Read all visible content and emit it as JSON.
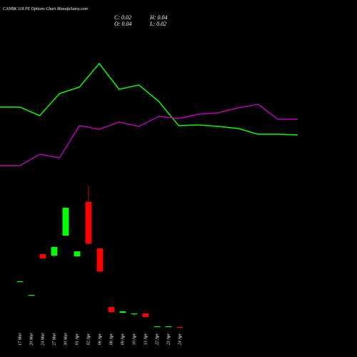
{
  "chart_data": [
    {
      "type": "candlestick",
      "title": "CANBK 118 PE Options Chart MunafaSutra.com",
      "ohlc_labels": [
        "C: 0.02",
        "H: 0.04",
        "O: 0.04",
        "L: 0.02"
      ],
      "categories": [
        "17 Mar",
        "20 Mar",
        "24 Mar",
        "27 Mar",
        "30 Mar",
        "01 Apr",
        "02 Apr",
        "06 Apr",
        "08 Apr",
        "09 Apr",
        "10 Apr",
        "13 Apr",
        "22 Apr",
        "23 Apr",
        "24 Apr"
      ],
      "open": [
        1.32,
        0.94,
        2.08,
        2.04,
        2.6,
        2.02,
        3.54,
        2.24,
        0.6,
        0.44,
        0.4,
        0.42,
        0.06,
        0.06,
        0.04
      ],
      "high": [
        1.32,
        0.94,
        2.08,
        2.3,
        3.38,
        2.16,
        4.0,
        2.24,
        0.6,
        0.5,
        0.42,
        0.42,
        0.06,
        0.06,
        0.04
      ],
      "low": [
        1.32,
        0.94,
        1.96,
        2.0,
        2.6,
        2.02,
        2.34,
        1.56,
        0.46,
        0.42,
        0.36,
        0.32,
        0.06,
        0.06,
        0.02
      ],
      "close": [
        1.32,
        0.94,
        1.96,
        2.28,
        3.38,
        2.16,
        2.38,
        1.6,
        0.46,
        0.48,
        0.42,
        0.32,
        0.06,
        0.06,
        0.02
      ],
      "up_color": "#00ff00",
      "down_color": "#ff0000",
      "ylim": [
        0,
        9.2
      ]
    },
    {
      "type": "line",
      "series": [
        {
          "color": "#00ff00",
          "values": [
            60,
            60,
            55.2,
            67.6,
            71.2,
            84.4,
            70,
            72.4,
            63.2,
            49.6,
            50,
            49.2,
            48,
            44.8,
            44.8,
            44.4
          ]
        },
        {
          "color": "#c000c0",
          "values": [
            27.2,
            27.2,
            33.6,
            31.6,
            49.6,
            47.6,
            51.6,
            49.2,
            54.8,
            53.6,
            56,
            56.8,
            59.6,
            61.6,
            53.2,
            53.2
          ]
        }
      ],
      "ylim": [
        0,
        100
      ]
    }
  ]
}
